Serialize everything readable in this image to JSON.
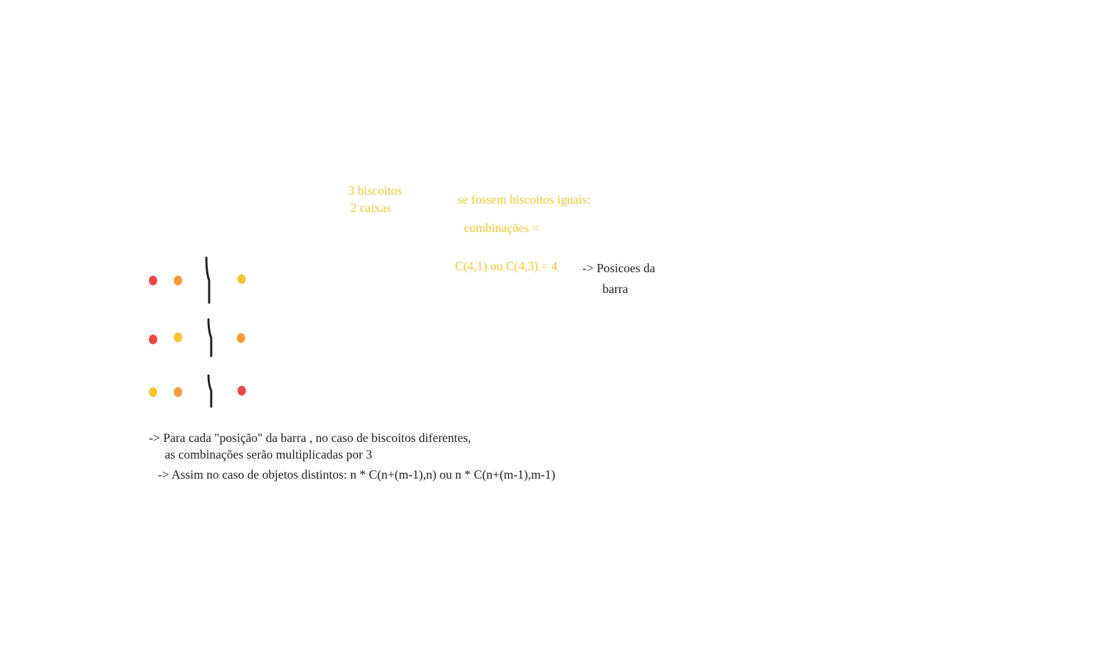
{
  "palette": {
    "ink": "#1e1e1e",
    "yellow": "#f5c530",
    "orange": "#ff9933",
    "red": "#f04848",
    "background": "#ffffff"
  },
  "notes": {
    "problem_line1": "3 biscoitos",
    "problem_line2": "2 caixas",
    "identical_heading": "se fossem biscoitos iguais:",
    "combinations_label": "combinações =",
    "combination_formula": "C(4,1) ou C(4,3) = 4",
    "bar_positions_line1": "-> Posicoes da",
    "bar_positions_line2": "barra",
    "explanation_line1": "-> Para cada \"posição\" da barra , no caso de biscoitos diferentes,",
    "explanation_line2": "as combinações serão multiplicadas por 3",
    "conclusion": "-> Assim no caso de objetos distintos: n * C(n+(m-1),n) ou n * C(n+(m-1),m-1)"
  },
  "arrangements": [
    {
      "left": [
        "red",
        "orange"
      ],
      "right": [
        "yellow"
      ]
    },
    {
      "left": [
        "red",
        "yellow"
      ],
      "right": [
        "orange"
      ]
    },
    {
      "left": [
        "yellow",
        "orange"
      ],
      "right": [
        "red"
      ]
    }
  ]
}
